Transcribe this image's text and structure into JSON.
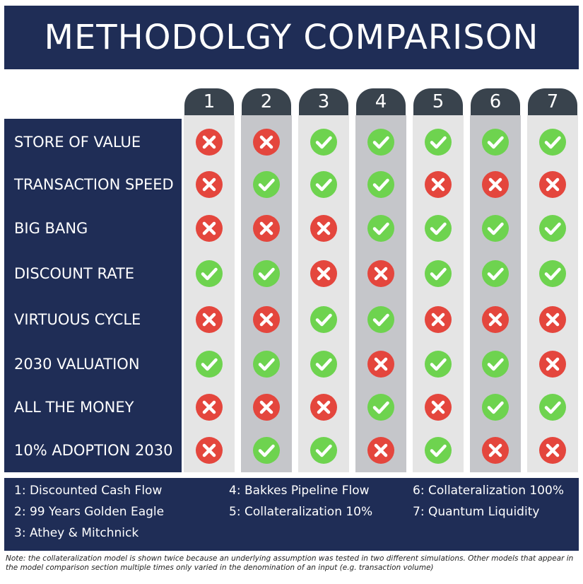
{
  "chart_data": {
    "type": "table",
    "title": "METHODOLGY COMPARISON",
    "columns": [
      "1",
      "2",
      "3",
      "4",
      "5",
      "6",
      "7"
    ],
    "rows": [
      {
        "label": "STORE OF VALUE",
        "values": [
          "x",
          "x",
          "check",
          "check",
          "check",
          "check",
          "check"
        ]
      },
      {
        "label": "TRANSACTION SPEED",
        "values": [
          "x",
          "check",
          "check",
          "check",
          "x",
          "x",
          "x"
        ]
      },
      {
        "label": "BIG BANG",
        "values": [
          "x",
          "x",
          "x",
          "check",
          "check",
          "check",
          "check"
        ]
      },
      {
        "label": "DISCOUNT RATE",
        "values": [
          "check",
          "check",
          "x",
          "x",
          "check",
          "check",
          "check"
        ]
      },
      {
        "label": "VIRTUOUS CYCLE",
        "values": [
          "x",
          "x",
          "check",
          "check",
          "x",
          "x",
          "x"
        ]
      },
      {
        "label": "2030 VALUATION",
        "values": [
          "check",
          "check",
          "check",
          "x",
          "check",
          "check",
          "x"
        ]
      },
      {
        "label": "ALL THE MONEY",
        "values": [
          "x",
          "x",
          "x",
          "check",
          "x",
          "check",
          "check"
        ]
      },
      {
        "label": "10% ADOPTION 2030",
        "values": [
          "x",
          "check",
          "check",
          "x",
          "check",
          "x",
          "x"
        ]
      }
    ],
    "legend": [
      "1: Discounted Cash Flow",
      "2: 99 Years Golden Eagle",
      "3: Athey & Mitchnick",
      "4: Bakkes Pipeline Flow",
      "5: Collateralization 10%",
      "6: Collateralization 100%",
      "7: Quantum Liquidity"
    ],
    "note": "Note: the collateralization model is shown twice because an underlying assumption was tested in two different simulations. Other models that appear in the model comparison section multiple times only varied in the denomination of an input (e.g. transaction volume)"
  },
  "colors": {
    "navy": "#1f2d56",
    "tab": "#39434d",
    "check": "#6ed34f",
    "cross": "#e4463d"
  },
  "icons": {
    "check": "check-icon",
    "x": "x-icon"
  }
}
